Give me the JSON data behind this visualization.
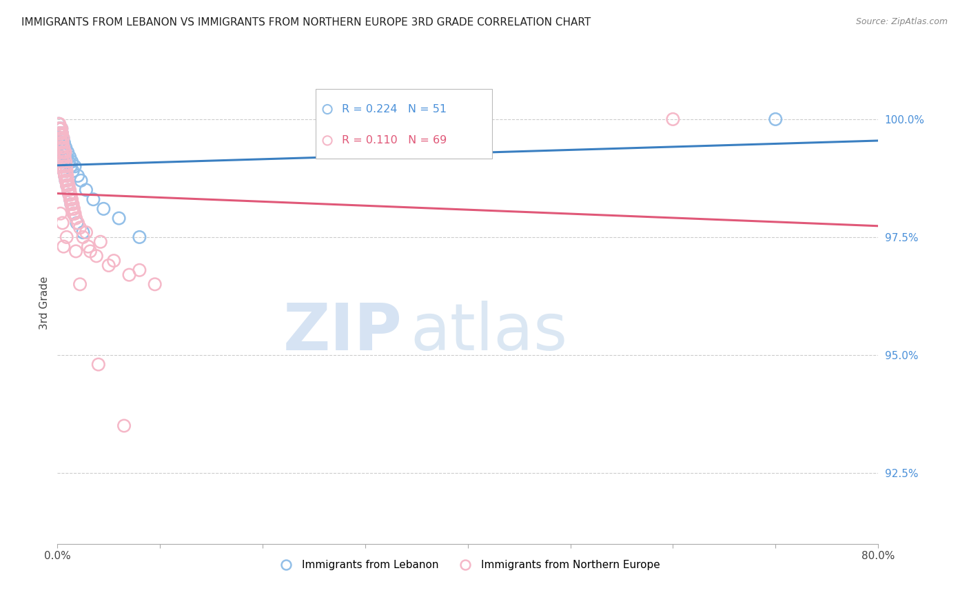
{
  "title": "IMMIGRANTS FROM LEBANON VS IMMIGRANTS FROM NORTHERN EUROPE 3RD GRADE CORRELATION CHART",
  "source": "Source: ZipAtlas.com",
  "ylabel": "3rd Grade",
  "ytick_labels": [
    "100.0%",
    "97.5%",
    "95.0%",
    "92.5%"
  ],
  "ytick_values": [
    100.0,
    97.5,
    95.0,
    92.5
  ],
  "xmin": 0.0,
  "xmax": 80.0,
  "ymin": 91.0,
  "ymax": 101.2,
  "legend_blue_r": "R = 0.224",
  "legend_blue_n": "N = 51",
  "legend_pink_r": "R = 0.110",
  "legend_pink_n": "N = 69",
  "blue_color": "#92bfe8",
  "pink_color": "#f5b8c8",
  "blue_line_color": "#3a7fc1",
  "pink_line_color": "#e05878",
  "watermark_zip": "ZIP",
  "watermark_atlas": "atlas",
  "blue_scatter_x": [
    0.1,
    0.15,
    0.2,
    0.25,
    0.3,
    0.35,
    0.4,
    0.45,
    0.5,
    0.55,
    0.6,
    0.65,
    0.7,
    0.8,
    0.9,
    1.0,
    1.1,
    1.2,
    1.3,
    1.4,
    1.5,
    1.7,
    2.0,
    2.3,
    2.8,
    3.5,
    4.5,
    6.0,
    8.0,
    0.12,
    0.18,
    0.22,
    0.28,
    0.32,
    0.38,
    0.42,
    0.48,
    0.52,
    0.58,
    0.62,
    0.72,
    0.82,
    0.92,
    1.05,
    1.15,
    1.25,
    1.35,
    1.6,
    1.9,
    2.5,
    70.0
  ],
  "blue_scatter_y": [
    99.5,
    99.6,
    99.7,
    99.8,
    99.7,
    99.6,
    99.8,
    99.7,
    99.5,
    99.6,
    99.4,
    99.5,
    99.3,
    99.4,
    99.2,
    99.3,
    99.1,
    99.2,
    99.0,
    99.1,
    98.9,
    99.0,
    98.8,
    98.7,
    98.5,
    98.3,
    98.1,
    97.9,
    97.5,
    99.9,
    99.8,
    99.7,
    99.6,
    99.5,
    99.4,
    99.3,
    99.2,
    99.1,
    99.0,
    98.9,
    98.8,
    98.7,
    98.6,
    98.5,
    98.4,
    98.3,
    98.2,
    98.0,
    97.8,
    97.6,
    100.0
  ],
  "pink_scatter_x": [
    0.1,
    0.15,
    0.2,
    0.25,
    0.3,
    0.35,
    0.4,
    0.45,
    0.5,
    0.55,
    0.6,
    0.65,
    0.7,
    0.75,
    0.8,
    0.85,
    0.9,
    0.95,
    1.0,
    1.1,
    1.2,
    1.3,
    1.4,
    1.5,
    1.6,
    1.7,
    1.8,
    2.0,
    2.2,
    2.5,
    3.0,
    3.8,
    5.0,
    7.0,
    9.5,
    0.12,
    0.18,
    0.22,
    0.28,
    0.32,
    0.38,
    0.42,
    0.48,
    0.52,
    0.58,
    0.62,
    0.72,
    0.82,
    0.92,
    1.05,
    1.15,
    1.25,
    1.35,
    1.45,
    1.55,
    2.8,
    4.2,
    3.2,
    5.5,
    8.0,
    0.3,
    0.5,
    0.9,
    1.8,
    2.2,
    4.0,
    6.5,
    60.0,
    0.6
  ],
  "pink_scatter_y": [
    99.7,
    99.8,
    99.9,
    99.8,
    99.7,
    99.6,
    99.8,
    99.7,
    99.5,
    99.6,
    99.4,
    99.3,
    99.2,
    99.3,
    99.1,
    99.0,
    98.9,
    98.8,
    98.7,
    98.6,
    98.5,
    98.4,
    98.3,
    98.2,
    98.1,
    98.0,
    97.9,
    97.8,
    97.7,
    97.5,
    97.3,
    97.1,
    96.9,
    96.7,
    96.5,
    99.9,
    99.8,
    99.7,
    99.6,
    99.5,
    99.4,
    99.3,
    99.2,
    99.1,
    99.0,
    98.9,
    98.8,
    98.7,
    98.6,
    98.5,
    98.4,
    98.3,
    98.2,
    98.1,
    98.0,
    97.6,
    97.4,
    97.2,
    97.0,
    96.8,
    98.0,
    97.8,
    97.5,
    97.2,
    96.5,
    94.8,
    93.5,
    100.0,
    97.3
  ]
}
